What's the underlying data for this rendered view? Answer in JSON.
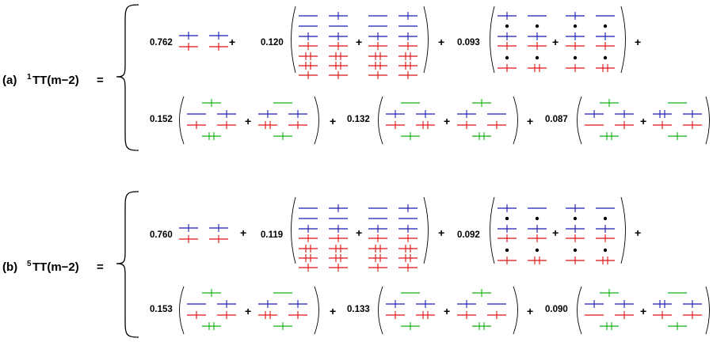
{
  "colors": {
    "upper": "#1a1ab4",
    "middle": "#e01010",
    "lower": "#10b010",
    "dot": "#000000",
    "text": "#000000"
  },
  "sections": [
    {
      "id": "a",
      "label": {
        "prefix": "(a)",
        "sup": "1",
        "name": "TT(m−2)",
        "eq": "="
      },
      "rows": [
        [
          {
            "coef": "0.762",
            "groups": [
              {
                "kind": "simple"
              }
            ]
          },
          {
            "coef": "0.120",
            "groups": [
              {
                "kind": "tall"
              },
              {
                "kind": "tall"
              }
            ]
          },
          {
            "coef": "0.093",
            "groups": [
              {
                "kind": "dotted"
              },
              {
                "kind": "dotted"
              }
            ]
          }
        ],
        [
          {
            "coef": "0.152",
            "groups": [
              {
                "kind": "green"
              },
              {
                "kind": "green"
              }
            ]
          },
          {
            "coef": "0.132",
            "groups": [
              {
                "kind": "green"
              },
              {
                "kind": "green"
              }
            ]
          },
          {
            "coef": "0.087",
            "groups": [
              {
                "kind": "green"
              },
              {
                "kind": "green"
              }
            ]
          }
        ]
      ]
    },
    {
      "id": "b",
      "label": {
        "prefix": "(b)",
        "sup": "5",
        "name": "TT(m−2)",
        "eq": "="
      },
      "rows": [
        [
          {
            "coef": "0.760",
            "groups": [
              {
                "kind": "simple"
              }
            ]
          },
          {
            "coef": "0.119",
            "groups": [
              {
                "kind": "tall"
              },
              {
                "kind": "tall"
              }
            ]
          },
          {
            "coef": "0.092",
            "groups": [
              {
                "kind": "dotted"
              },
              {
                "kind": "dotted"
              }
            ]
          }
        ],
        [
          {
            "coef": "0.153",
            "groups": [
              {
                "kind": "green"
              },
              {
                "kind": "green"
              }
            ]
          },
          {
            "coef": "0.133",
            "groups": [
              {
                "kind": "green"
              },
              {
                "kind": "green"
              }
            ]
          },
          {
            "coef": "0.090",
            "groups": [
              {
                "kind": "green"
              },
              {
                "kind": "green"
              }
            ]
          }
        ]
      ]
    }
  ],
  "plus": "+"
}
